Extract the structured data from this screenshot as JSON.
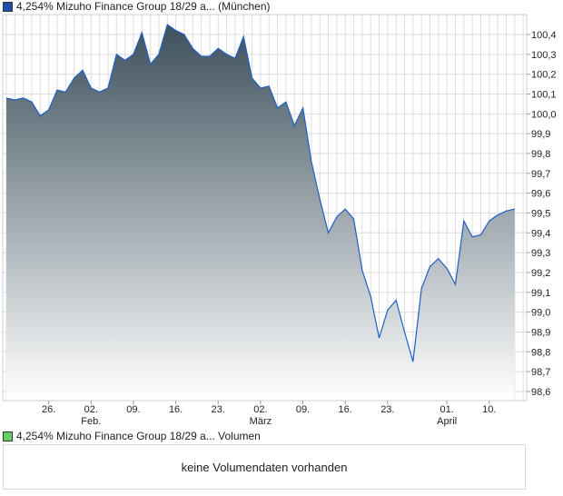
{
  "legend_main": "4,254% Mizuho Finance Group 18/29 a... (München)",
  "legend_volume": "4,254% Mizuho Finance Group 18/29 a... Volumen",
  "volume_message": "keine Volumendaten vorhanden",
  "colors": {
    "line": "#1f5fc4",
    "fill_top": "#3d505c",
    "fill_bottom": "#ffffff",
    "volume_swatch": "#66cc66"
  },
  "chart_data": {
    "type": "area",
    "ylim": [
      98.55,
      100.5
    ],
    "grid": true,
    "y_ticks": [
      "100,4",
      "100,3",
      "100,2",
      "100,1",
      "100,0",
      "99,9",
      "99,8",
      "99,7",
      "99,6",
      "99,5",
      "99,4",
      "99,3",
      "99,2",
      "99,1",
      "99,0",
      "98,9",
      "98,8",
      "98,7",
      "98,6"
    ],
    "x_ticks": [
      {
        "label": "26.",
        "sub": "",
        "index": 5
      },
      {
        "label": "02.",
        "sub": "Feb.",
        "index": 10
      },
      {
        "label": "09.",
        "sub": "",
        "index": 15
      },
      {
        "label": "16.",
        "sub": "",
        "index": 20
      },
      {
        "label": "23.",
        "sub": "",
        "index": 25
      },
      {
        "label": "02.",
        "sub": "März",
        "index": 30
      },
      {
        "label": "09.",
        "sub": "",
        "index": 35
      },
      {
        "label": "16.",
        "sub": "",
        "index": 40
      },
      {
        "label": "23.",
        "sub": "",
        "index": 45
      },
      {
        "label": "01.",
        "sub": "April",
        "index": 52
      },
      {
        "label": "10.",
        "sub": "",
        "index": 57
      }
    ],
    "values": [
      100.08,
      100.07,
      100.08,
      100.06,
      99.99,
      100.02,
      100.12,
      100.11,
      100.18,
      100.22,
      100.13,
      100.11,
      100.13,
      100.3,
      100.27,
      100.3,
      100.41,
      100.25,
      100.3,
      100.45,
      100.42,
      100.4,
      100.33,
      100.29,
      100.29,
      100.33,
      100.3,
      100.28,
      100.39,
      100.18,
      100.13,
      100.14,
      100.03,
      100.06,
      99.94,
      100.03,
      99.76,
      99.57,
      99.4,
      99.48,
      99.52,
      99.47,
      99.21,
      99.08,
      98.87,
      99.01,
      99.06,
      98.9,
      98.75,
      99.12,
      99.23,
      99.27,
      99.22,
      99.14,
      99.46,
      99.38,
      99.39,
      99.46,
      99.49,
      99.51,
      99.52
    ]
  }
}
